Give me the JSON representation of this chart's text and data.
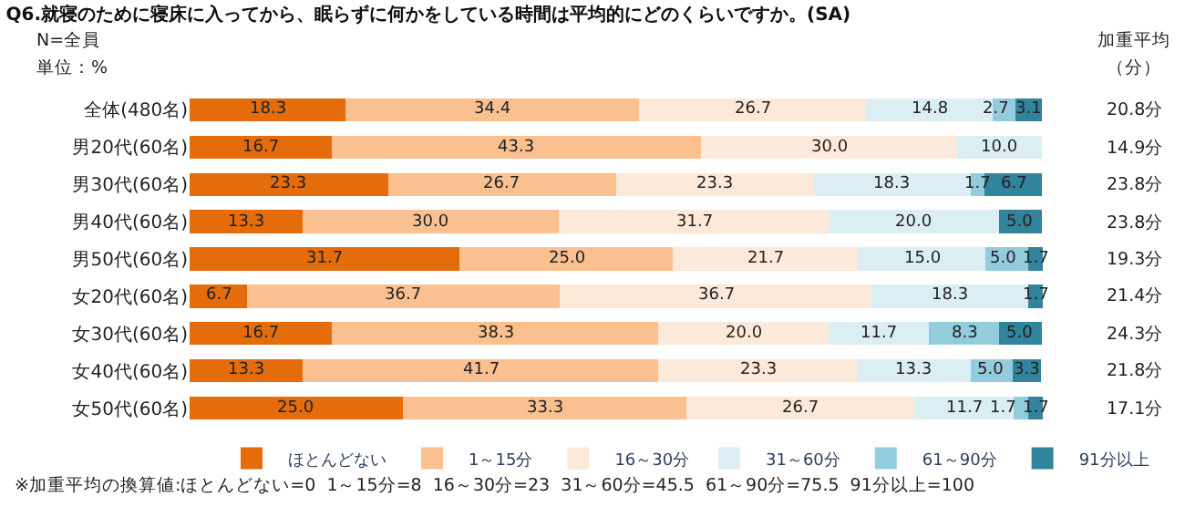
{
  "chart_data": {
    "type": "bar",
    "orientation": "horizontal",
    "stacked": true,
    "title": "Q6.就寝のために寝床に入ってから、眠らずに何かをしている時間は平均的にどのくらいですか。(SA)",
    "categories": [
      "全体(480名)",
      "男20代(60名)",
      "男30代(60名)",
      "男40代(60名)",
      "男50代(60名)",
      "女20代(60名)",
      "女30代(60名)",
      "女40代(60名)",
      "女50代(60名)"
    ],
    "series": [
      {
        "name": "ほとんどない",
        "color": "#e46c0a",
        "values": [
          18.3,
          16.7,
          23.3,
          13.3,
          31.7,
          6.7,
          16.7,
          13.3,
          25.0
        ],
        "value_labels": [
          "18.3",
          "16.7",
          "23.3",
          "13.3",
          "31.7",
          "6.7",
          "16.7",
          "13.3",
          "25.0"
        ]
      },
      {
        "name": "1～15分",
        "color": "#fac090",
        "values": [
          34.4,
          43.3,
          26.7,
          30.0,
          25.0,
          36.7,
          38.3,
          41.7,
          33.3
        ],
        "value_labels": [
          "34.4",
          "43.3",
          "26.7",
          "30.0",
          "25.0",
          "36.7",
          "38.3",
          "41.7",
          "33.3"
        ]
      },
      {
        "name": "16～30分",
        "color": "#fde9d9",
        "values": [
          26.7,
          30.0,
          23.3,
          31.7,
          21.7,
          36.7,
          20.0,
          23.3,
          26.7
        ],
        "value_labels": [
          "26.7",
          "30.0",
          "23.3",
          "31.7",
          "21.7",
          "36.7",
          "20.0",
          "23.3",
          "26.7"
        ]
      },
      {
        "name": "31～60分",
        "color": "#dbeef4",
        "values": [
          14.8,
          10.0,
          18.3,
          20.0,
          15.0,
          18.3,
          11.7,
          13.3,
          11.7
        ],
        "value_labels": [
          "14.8",
          "10.0",
          "18.3",
          "20.0",
          "15.0",
          "18.3",
          "11.7",
          "13.3",
          "11.7"
        ]
      },
      {
        "name": "61～90分",
        "color": "#93cddd",
        "values": [
          2.7,
          0,
          1.7,
          0,
          5.0,
          0,
          8.3,
          5.0,
          1.7
        ],
        "value_labels": [
          "2.7",
          null,
          "1.7",
          null,
          "5.0",
          null,
          "8.3",
          "5.0",
          "1.7"
        ]
      },
      {
        "name": "91分以上",
        "color": "#31849b",
        "values": [
          3.1,
          0,
          6.7,
          5.0,
          1.7,
          1.7,
          5.0,
          3.3,
          1.7
        ],
        "value_labels": [
          "3.1",
          null,
          "6.7",
          "5.0",
          "1.7",
          "1.7",
          "5.0",
          "3.3",
          "1.7"
        ]
      }
    ],
    "annotations": [
      "N=全員",
      "単位：%",
      "加重平均",
      "（分）",
      "20.8分",
      "14.9分",
      "23.8分",
      "23.8分",
      "19.3分",
      "21.4分",
      "24.3分",
      "21.8分",
      "17.1分",
      "※加重平均の換算値:ほとんどない=0  1～15分=8  16～30分=23  31～60分=45.5  61～90分=75.5  91分以上=100"
    ],
    "legend": "bottom",
    "tick_labels": "y"
  }
}
